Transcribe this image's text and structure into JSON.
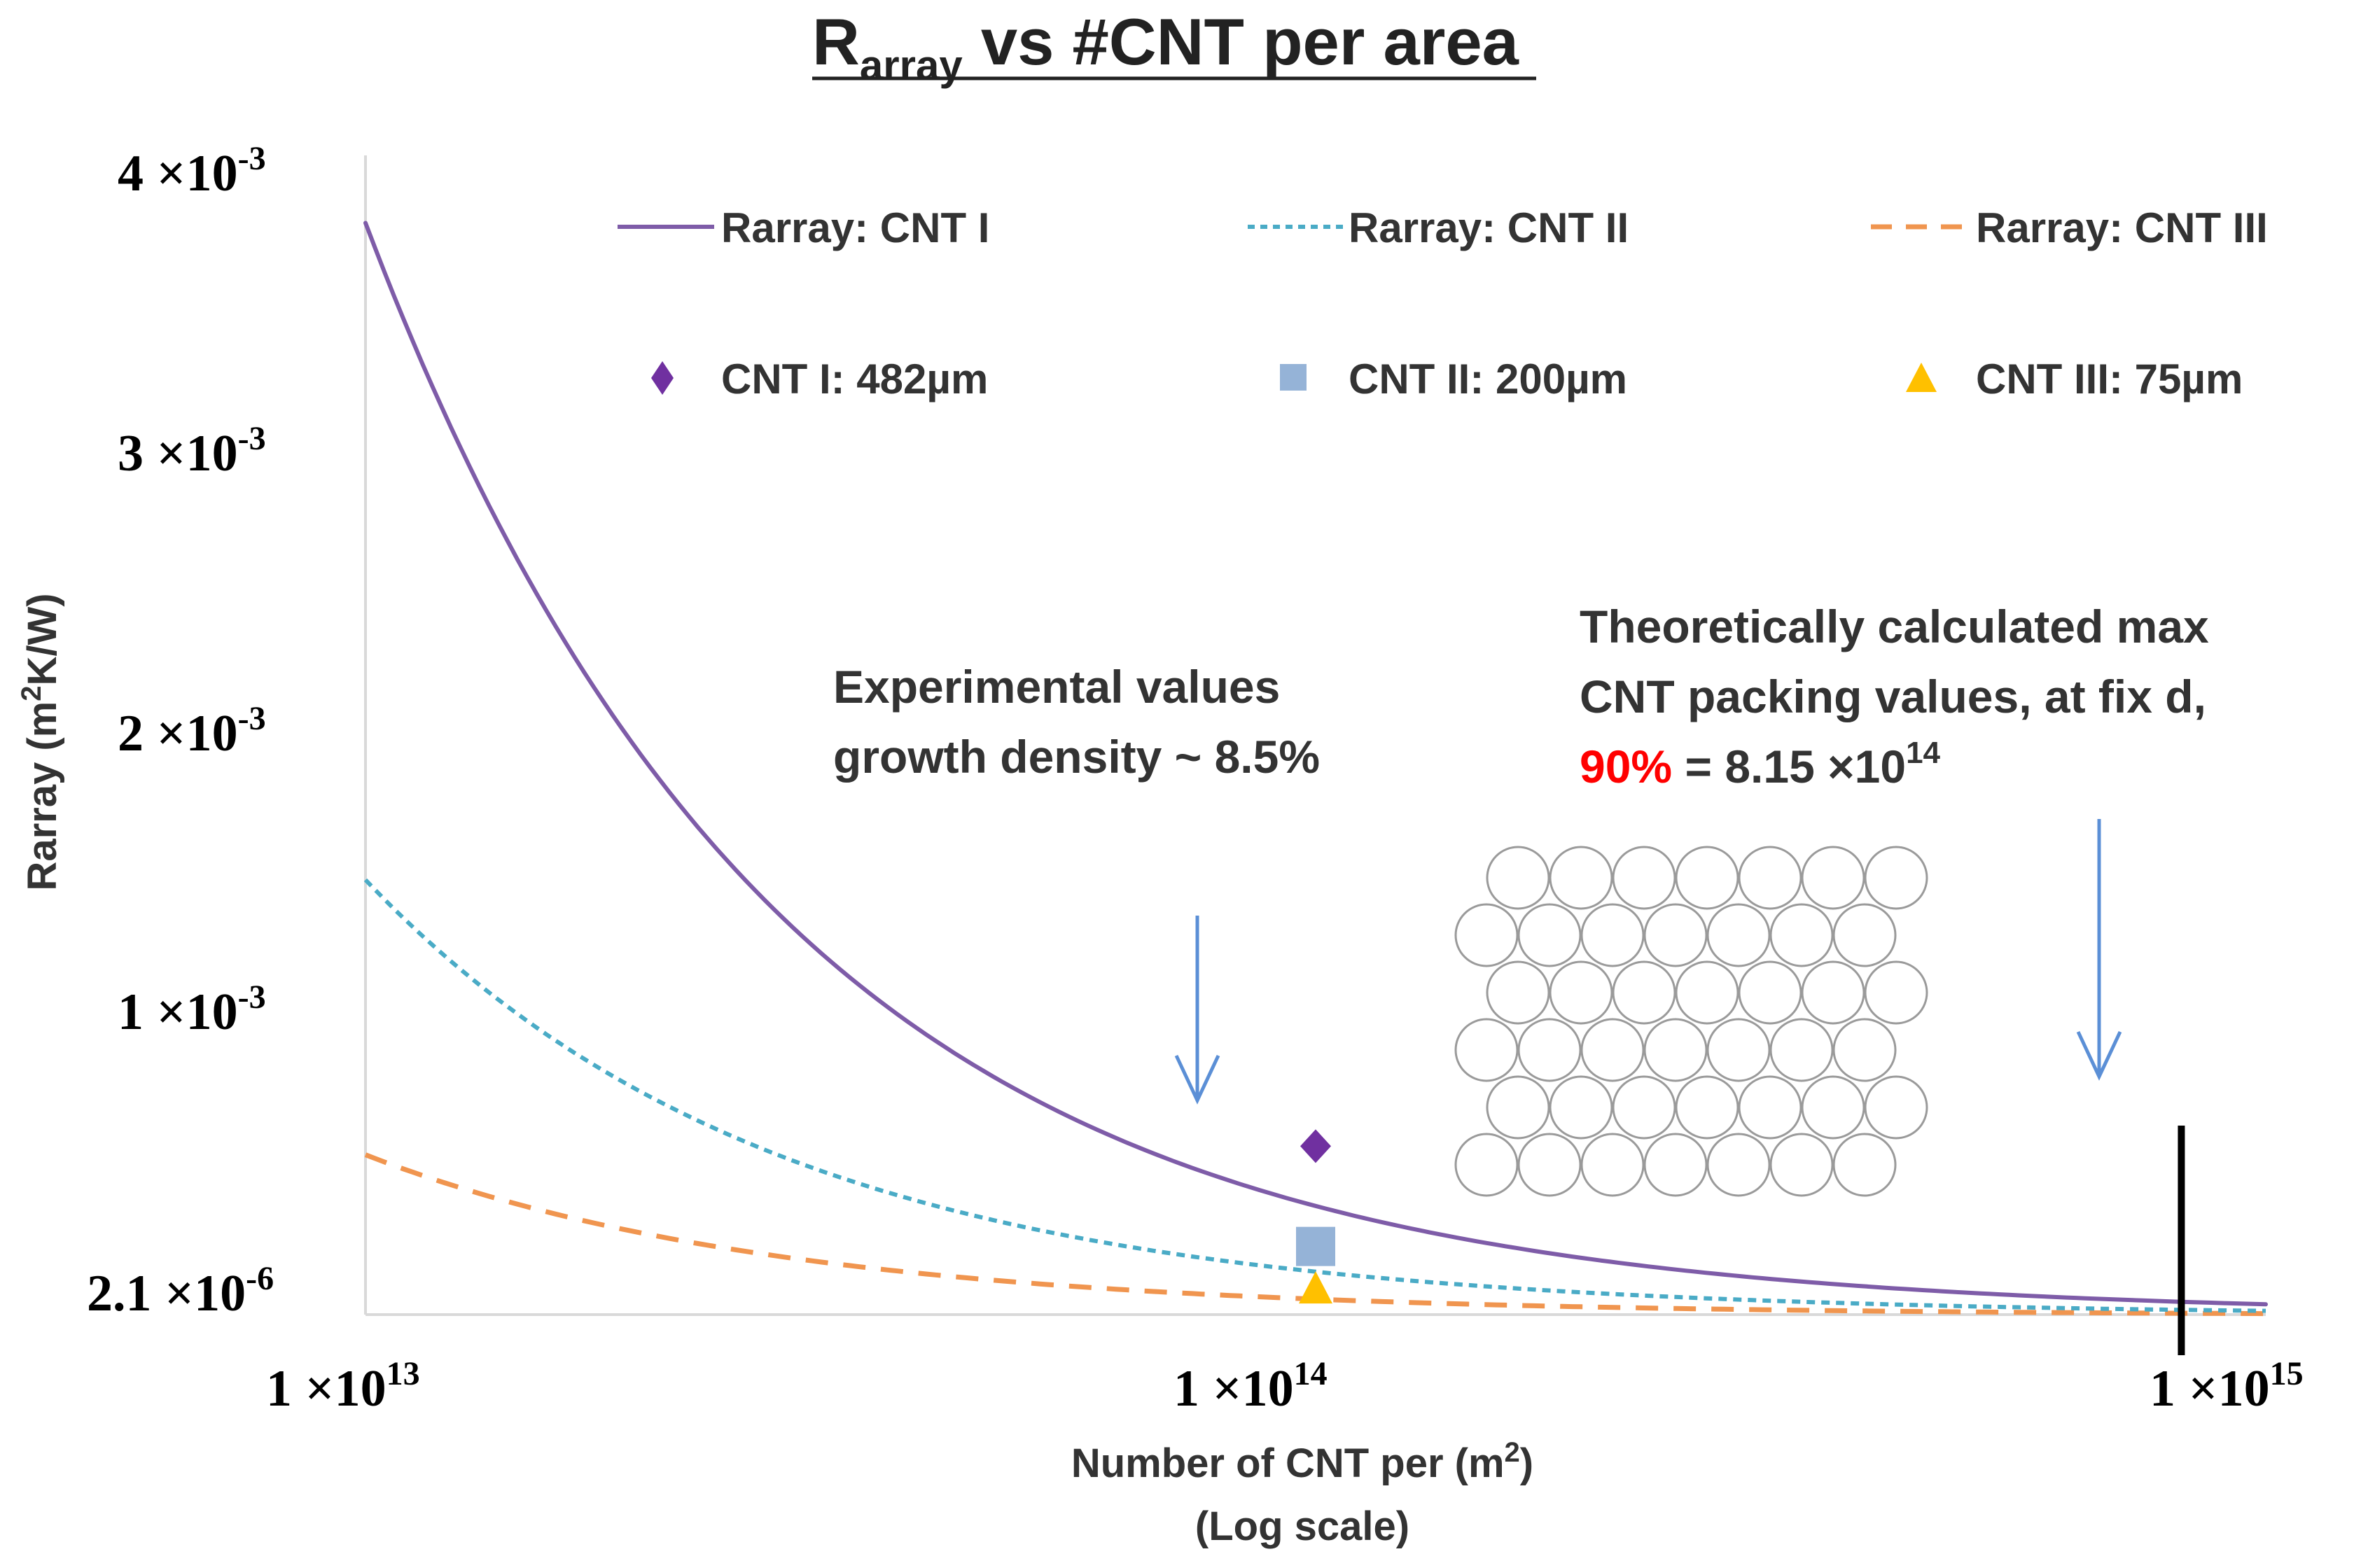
{
  "chart_data": {
    "type": "line",
    "title_main": "R",
    "title_sub": "array",
    "title_rest": " vs #CNT per area",
    "xlabel_line1": "Number of CNT per (m",
    "xlabel_sup": "2",
    "xlabel_line1_end": ")",
    "xlabel_line2": "(Log scale)",
    "ylabel_pre": "Rarray (m",
    "ylabel_sup": "2",
    "ylabel_post": "K/W)",
    "x_scale": "log",
    "xlim": [
      10000000000000.0,
      1000000000000000.0
    ],
    "ylim": [
      2.1e-06,
      0.004
    ],
    "x_ticks": [
      {
        "value": 10000000000000.0,
        "mantissa": "1 ×10",
        "exp": "13"
      },
      {
        "value": 100000000000000.0,
        "mantissa": "1 ×10",
        "exp": "14"
      },
      {
        "value": 1000000000000000.0,
        "mantissa": "1 ×10",
        "exp": "15"
      }
    ],
    "y_ticks": [
      {
        "value": 0.004,
        "mantissa": "4 ×10",
        "exp": "-3"
      },
      {
        "value": 0.003,
        "mantissa": "3 ×10",
        "exp": "-3"
      },
      {
        "value": 0.002,
        "mantissa": "2 ×10",
        "exp": "-3"
      },
      {
        "value": 0.001,
        "mantissa": "1 ×10",
        "exp": "-3"
      },
      {
        "value": 2.1e-06,
        "mantissa": "2.1 ×10",
        "exp": "-6"
      }
    ],
    "series": [
      {
        "name": "Rarray: CNT I",
        "color": "#7e5ca8",
        "style": "solid",
        "k": 38130000000.0
      },
      {
        "name": "Rarray: CNT II",
        "color": "#4aabc6",
        "style": "dotted",
        "k": 15200000000.0
      },
      {
        "name": "Rarray: CNT III",
        "color": "#f0954f",
        "style": "dashed",
        "k": 5600000000.0
      }
    ],
    "points": [
      {
        "name": "CNT I: 482µm",
        "x": 100000000000000.0,
        "y": 0.00059,
        "marker": "diamond",
        "color": "#7030a0"
      },
      {
        "name": "CNT II: 200µm",
        "x": 100000000000000.0,
        "y": 0.00024,
        "marker": "square",
        "color": "#95b3d7"
      },
      {
        "name": "CNT III: 75µm",
        "x": 100000000000000.0,
        "y": 8e-05,
        "marker": "triangle",
        "color": "#ffc000"
      }
    ],
    "annotations": {
      "experimental_line1": "Experimental values",
      "experimental_line2": "growth density ~ 8.5%",
      "theoretical_line1": "Theoretically calculated max",
      "theoretical_line2": "CNT packing values,  at fix d,",
      "theoretical_pct": "90%",
      "theoretical_value": " = 8.15 ×10",
      "theoretical_exp": "14",
      "max_packing_x": 815000000000000.0
    },
    "colors": {
      "arrow": "#5b8fd6",
      "marker_line": "#000000",
      "highlight": "#ff0000",
      "axis": "#d9d9d9"
    }
  }
}
